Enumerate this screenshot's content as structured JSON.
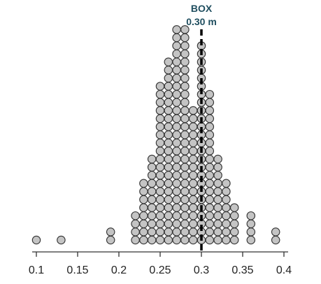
{
  "chart_data": {
    "type": "scatter",
    "subtype": "dot-plot",
    "xlim": [
      0.1,
      0.4
    ],
    "x_ticks": [
      0.1,
      0.15,
      0.2,
      0.25,
      0.3,
      0.35,
      0.4
    ],
    "x_tick_labels": [
      "0.1",
      "0.15",
      "0.2",
      "0.25",
      "0.3",
      "0.35",
      "0.4"
    ],
    "bin_width": 0.01,
    "reference_line": {
      "x": 0.3,
      "label": "BOX",
      "value_label": "0.30 m",
      "style": "dashed",
      "color": "#000000"
    },
    "bins": [
      {
        "x": 0.1,
        "count": 1
      },
      {
        "x": 0.13,
        "count": 1
      },
      {
        "x": 0.19,
        "count": 2
      },
      {
        "x": 0.22,
        "count": 4
      },
      {
        "x": 0.23,
        "count": 8
      },
      {
        "x": 0.24,
        "count": 11
      },
      {
        "x": 0.25,
        "count": 20
      },
      {
        "x": 0.26,
        "count": 23
      },
      {
        "x": 0.27,
        "count": 27
      },
      {
        "x": 0.28,
        "count": 27
      },
      {
        "x": 0.29,
        "count": 17
      },
      {
        "x": 0.3,
        "count": 25
      },
      {
        "x": 0.31,
        "count": 19
      },
      {
        "x": 0.32,
        "count": 11
      },
      {
        "x": 0.33,
        "count": 8
      },
      {
        "x": 0.34,
        "count": 5
      },
      {
        "x": 0.36,
        "count": 4
      },
      {
        "x": 0.39,
        "count": 2
      }
    ],
    "dot_color": "#c4c4c4",
    "dot_stroke": "#333333",
    "grid": false,
    "legend": "none"
  }
}
